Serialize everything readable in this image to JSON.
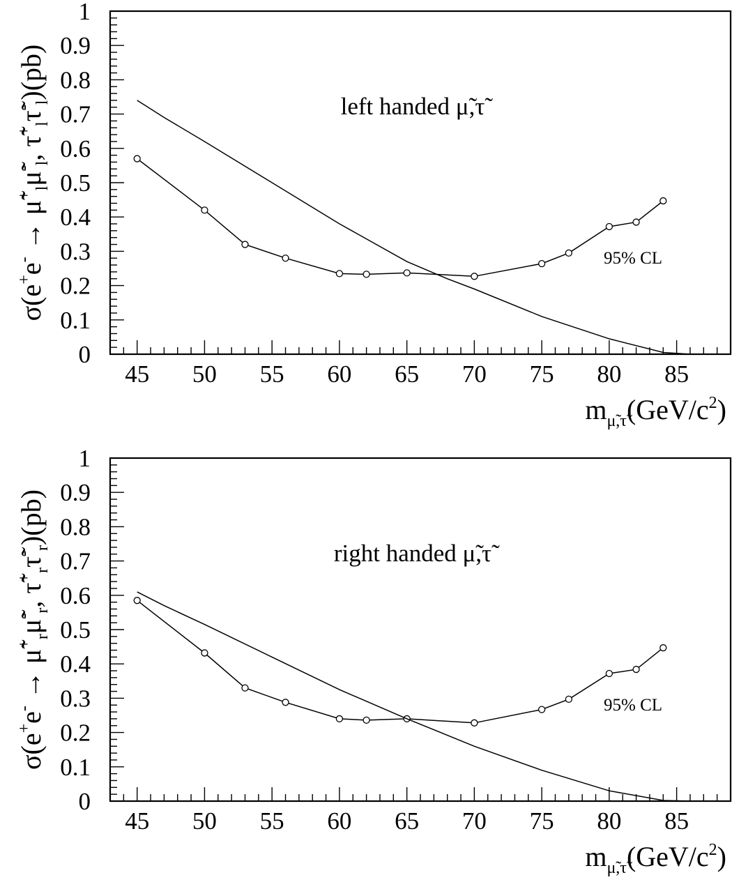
{
  "chart_data": [
    {
      "type": "line",
      "panel_label": "left handed μ̃,τ̃",
      "annotation": "95% CL",
      "xlabel": {
        "main": "m",
        "sub": "μ̃,τ̃",
        "unit": "(GeV/c",
        "sup": "2",
        "close": ")"
      },
      "ylabel": {
        "pre": "σ(e",
        "sup1": "+",
        "mid1": "e",
        "sup2": "-",
        "arrow": " → ",
        "body": "μ̃",
        "supA": "+",
        "subA": "l",
        "body2": "μ̃",
        "supB": "-",
        "subB": "l",
        "sep": ", τ̃",
        "supC": "+",
        "subC": "l",
        "body3": "τ̃",
        "supD": "-",
        "subD": "l",
        "unit": ")(pb)"
      },
      "xlim": [
        43,
        89
      ],
      "ylim": [
        0,
        1
      ],
      "x_ticks": [
        45,
        50,
        55,
        60,
        65,
        70,
        75,
        80,
        85
      ],
      "y_ticks": [
        "0",
        "0.1",
        "0.2",
        "0.3",
        "0.4",
        "0.5",
        "0.6",
        "0.7",
        "0.8",
        "0.9",
        "1"
      ],
      "series": [
        {
          "style": "line-with-circles",
          "x": [
            45,
            50,
            53,
            56,
            60,
            62,
            65,
            70,
            75,
            77,
            80,
            82,
            84
          ],
          "y": [
            0.57,
            0.42,
            0.32,
            0.28,
            0.235,
            0.233,
            0.237,
            0.227,
            0.264,
            0.295,
            0.372,
            0.385,
            0.447
          ]
        },
        {
          "style": "line",
          "x": [
            45,
            47,
            50,
            55,
            60,
            65,
            68,
            70,
            75,
            80,
            84,
            86
          ],
          "y": [
            0.74,
            0.69,
            0.62,
            0.5,
            0.38,
            0.27,
            0.22,
            0.19,
            0.11,
            0.045,
            0.005,
            0.0
          ]
        }
      ]
    },
    {
      "type": "line",
      "panel_label": "right handed μ̃,τ̃",
      "annotation": "95% CL",
      "xlabel": {
        "main": "m",
        "sub": "μ̃,τ̃",
        "unit": "(GeV/c",
        "sup": "2",
        "close": ")"
      },
      "ylabel": {
        "pre": "σ(e",
        "sup1": "+",
        "mid1": "e",
        "sup2": "-",
        "arrow": " → ",
        "body": "μ̃",
        "supA": "+",
        "subA": "r",
        "body2": "μ̃",
        "supB": "-",
        "subB": "r",
        "sep": ", τ̃",
        "supC": "+",
        "subC": "r",
        "body3": "τ̃",
        "supD": "-",
        "subD": "r",
        "unit": ")(pb)"
      },
      "xlim": [
        43,
        89
      ],
      "ylim": [
        0,
        1
      ],
      "x_ticks": [
        45,
        50,
        55,
        60,
        65,
        70,
        75,
        80,
        85
      ],
      "y_ticks": [
        "0",
        "0.1",
        "0.2",
        "0.3",
        "0.4",
        "0.5",
        "0.6",
        "0.7",
        "0.8",
        "0.9",
        "1"
      ],
      "series": [
        {
          "style": "line-with-circles",
          "x": [
            45,
            50,
            53,
            56,
            60,
            62,
            65,
            70,
            75,
            77,
            80,
            82,
            84
          ],
          "y": [
            0.585,
            0.432,
            0.33,
            0.288,
            0.24,
            0.236,
            0.24,
            0.228,
            0.267,
            0.297,
            0.372,
            0.384,
            0.447
          ]
        },
        {
          "style": "line",
          "x": [
            45,
            47,
            50,
            55,
            60,
            65,
            70,
            75,
            80,
            84,
            86
          ],
          "y": [
            0.61,
            0.57,
            0.515,
            0.42,
            0.325,
            0.24,
            0.16,
            0.09,
            0.03,
            0.002,
            0.0
          ]
        }
      ]
    }
  ]
}
